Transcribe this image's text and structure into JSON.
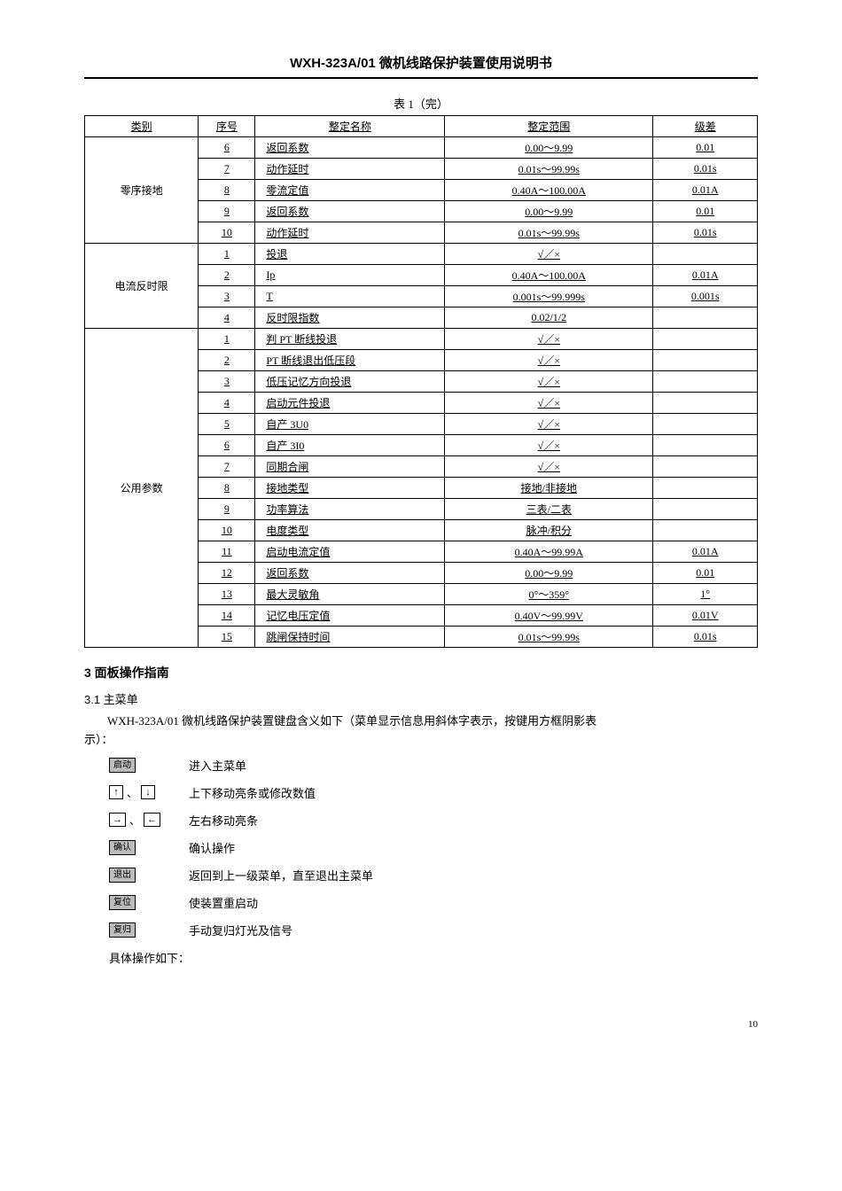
{
  "doc_title": "WXH-323A/01 微机线路保护装置使用说明书",
  "table_caption": "表 1（完）",
  "table": {
    "columns": [
      "类别",
      "序号",
      "整定名称",
      "整定范围",
      "级差"
    ],
    "groups": [
      {
        "category": "零序接地",
        "rows": [
          {
            "seq": "6",
            "name": "返回系数",
            "range": "0.00～9.99",
            "grade": "0.01"
          },
          {
            "seq": "7",
            "name": "动作延时",
            "range": "0.01s～99.99s",
            "grade": "0.01s"
          },
          {
            "seq": "8",
            "name": "零流定值",
            "range": "0.40A～100.00A",
            "grade": "0.01A"
          },
          {
            "seq": "9",
            "name": "返回系数",
            "range": "0.00～9.99",
            "grade": "0.01"
          },
          {
            "seq": "10",
            "name": "动作延时",
            "range": "0.01s～99.99s",
            "grade": "0.01s"
          }
        ]
      },
      {
        "category": "电流反时限",
        "rows": [
          {
            "seq": "1",
            "name": "投退",
            "range": "√／×",
            "grade": ""
          },
          {
            "seq": "2",
            "name": "Ip",
            "range": "0.40A～100.00A",
            "grade": "0.01A"
          },
          {
            "seq": "3",
            "name": "T",
            "range": "0.001s～99.999s",
            "grade": "0.001s"
          },
          {
            "seq": "4",
            "name": "反时限指数",
            "range": "0.02/1/2",
            "grade": ""
          }
        ]
      },
      {
        "category": "公用参数",
        "rows": [
          {
            "seq": "1",
            "name": "判 PT 断线投退",
            "range": "√／×",
            "grade": ""
          },
          {
            "seq": "2",
            "name": "PT 断线退出低压段",
            "range": "√／×",
            "grade": ""
          },
          {
            "seq": "3",
            "name": "低压记忆方向投退",
            "range": "√／×",
            "grade": ""
          },
          {
            "seq": "4",
            "name": "启动元件投退",
            "range": "√／×",
            "grade": ""
          },
          {
            "seq": "5",
            "name": "自产 3U0",
            "range": "√／×",
            "grade": ""
          },
          {
            "seq": "6",
            "name": "自产 3I0",
            "range": "√／×",
            "grade": ""
          },
          {
            "seq": "7",
            "name": "同期合闸",
            "range": "√／×",
            "grade": ""
          },
          {
            "seq": "8",
            "name": "接地类型",
            "range": "接地/非接地",
            "grade": ""
          },
          {
            "seq": "9",
            "name": "功率算法",
            "range": "三表/二表",
            "grade": ""
          },
          {
            "seq": "10",
            "name": "电度类型",
            "range": "脉冲/积分",
            "grade": ""
          },
          {
            "seq": "11",
            "name": "启动电流定值",
            "range": "0.40A～99.99A",
            "grade": "0.01A"
          },
          {
            "seq": "12",
            "name": "返回系数",
            "range": "0.00～9.99",
            "grade": "0.01"
          },
          {
            "seq": "13",
            "name": "最大灵敏角",
            "range": "0°～359°",
            "grade": "1°"
          },
          {
            "seq": "14",
            "name": "记忆电压定值",
            "range": "0.40V～99.99V",
            "grade": "0.01V"
          },
          {
            "seq": "15",
            "name": "跳闸保持时间",
            "range": "0.01s～99.99s",
            "grade": "0.01s"
          }
        ]
      }
    ]
  },
  "section3": {
    "heading": "3  面板操作指南",
    "sub_heading": "3.1  主菜单",
    "intro_line1": "WXH-323A/01 微机线路保护装置键盘含义如下（菜单显示信息用斜体字表示，按键用方框阴影表",
    "intro_line2": "示）：",
    "keys": [
      {
        "label": "启动",
        "type": "shaded",
        "desc": "进入主菜单"
      },
      {
        "labels": [
          "↑",
          "↓"
        ],
        "type": "arrow-pair",
        "sep": "、",
        "desc": "上下移动亮条或修改数值"
      },
      {
        "labels": [
          "→",
          "←"
        ],
        "type": "arrow-pair",
        "sep": "、",
        "desc": "左右移动亮条"
      },
      {
        "label": "确认",
        "type": "shaded",
        "desc": "确认操作"
      },
      {
        "label": "退出",
        "type": "shaded",
        "desc": "返回到上一级菜单，直至退出主菜单"
      },
      {
        "label": "复位",
        "type": "shaded",
        "desc": "使装置重启动"
      },
      {
        "label": "复归",
        "type": "shaded",
        "desc": "手动复归灯光及信号"
      }
    ],
    "footer": "具体操作如下："
  },
  "page_num": "10"
}
